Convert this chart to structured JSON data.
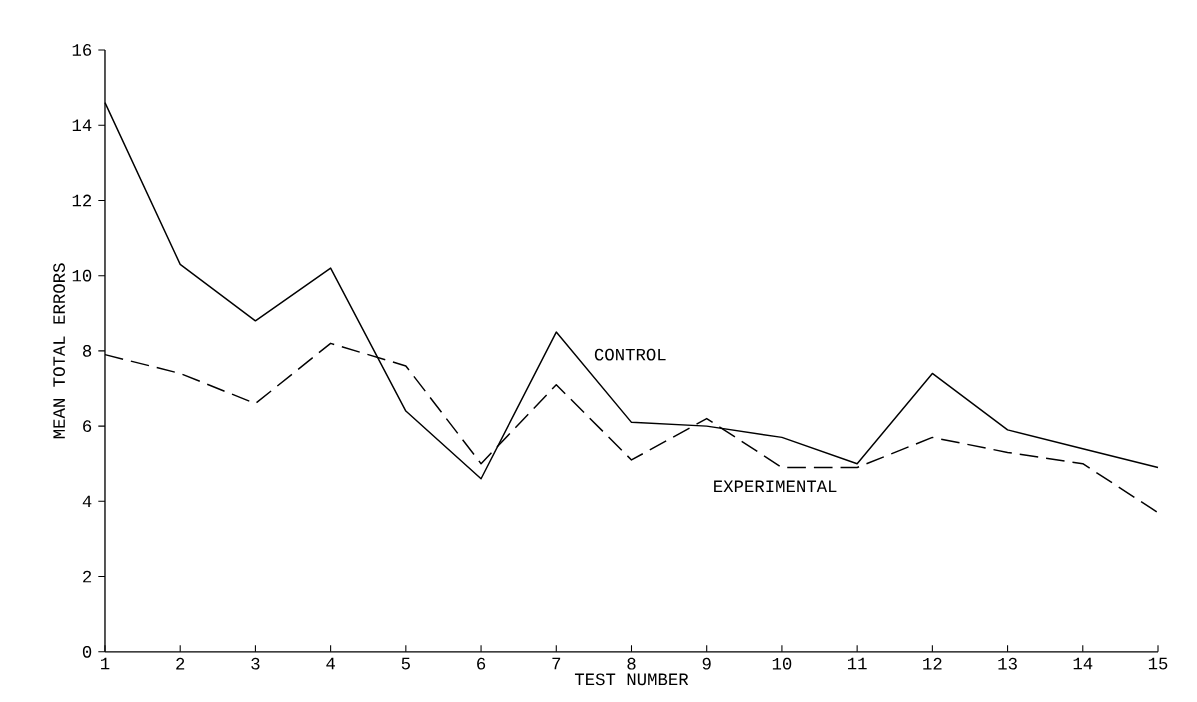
{
  "chart_data": {
    "type": "line",
    "xlabel": "TEST NUMBER",
    "ylabel": "MEAN TOTAL ERRORS",
    "x": [
      1,
      2,
      3,
      4,
      5,
      6,
      7,
      8,
      9,
      10,
      11,
      12,
      13,
      14,
      15
    ],
    "series": [
      {
        "name": "CONTROL",
        "color": "#000000",
        "line_style": "solid",
        "values": [
          14.6,
          10.3,
          8.8,
          10.2,
          6.4,
          4.6,
          8.5,
          6.1,
          6.0,
          5.7,
          5.0,
          7.4,
          5.9,
          5.4,
          4.9
        ]
      },
      {
        "name": "EXPERIMENTAL",
        "color": "#000000",
        "line_style": "dashed",
        "values": [
          7.9,
          7.4,
          6.6,
          8.2,
          7.6,
          5.0,
          7.1,
          5.1,
          6.2,
          4.9,
          4.9,
          5.7,
          5.3,
          5.0,
          3.7
        ]
      }
    ],
    "xlim": [
      1,
      15
    ],
    "ylim": [
      0,
      16
    ],
    "xticks": [
      1,
      2,
      3,
      4,
      5,
      6,
      7,
      8,
      9,
      10,
      11,
      12,
      13,
      14,
      15
    ],
    "yticks": [
      0,
      2,
      4,
      6,
      8,
      10,
      12,
      14,
      16
    ],
    "grid": false,
    "marker": "none"
  }
}
